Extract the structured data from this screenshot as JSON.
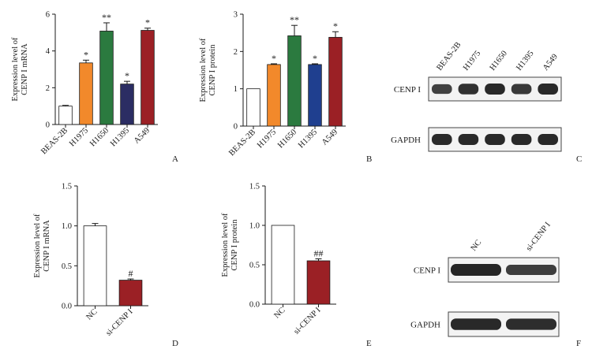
{
  "chart_data": [
    {
      "panel": "A",
      "type": "bar",
      "ylabel": [
        "Expression level of",
        "CENP I mRNA"
      ],
      "categories": [
        "BEAS-2B",
        "H1975",
        "H1650",
        "H1395",
        "A549"
      ],
      "values": [
        1.0,
        3.35,
        5.08,
        2.2,
        5.12
      ],
      "errors": [
        0.04,
        0.15,
        0.45,
        0.15,
        0.12
      ],
      "significance": [
        "",
        "*",
        "**",
        "*",
        "*"
      ],
      "colors": [
        "#ffffff",
        "#f2892b",
        "#2b7a3f",
        "#2b2d63",
        "#9b2025"
      ],
      "yticks": [
        "0",
        "2",
        "4",
        "6"
      ],
      "ylim": [
        0,
        6
      ]
    },
    {
      "panel": "B",
      "type": "bar",
      "ylabel": [
        "Expression level of",
        "CENP I protein"
      ],
      "categories": [
        "BEAS-2B",
        "H1975",
        "H1650",
        "H1395",
        "A549"
      ],
      "values": [
        1.0,
        1.65,
        2.42,
        1.65,
        2.38
      ],
      "errors": [
        0,
        0.02,
        0.28,
        0.02,
        0.15
      ],
      "significance": [
        "",
        "*",
        "**",
        "*",
        "*"
      ],
      "colors": [
        "#ffffff",
        "#f2892b",
        "#2b7a3f",
        "#1f3f8f",
        "#9b2025"
      ],
      "yticks": [
        "0",
        "1",
        "2",
        "3"
      ],
      "ylim": [
        0,
        3
      ]
    },
    {
      "panel": "D",
      "type": "bar",
      "ylabel": [
        "Expression level of",
        "CENP I mRNA"
      ],
      "categories": [
        "NC",
        "si-CENP I"
      ],
      "values": [
        1.0,
        0.32
      ],
      "errors": [
        0.03,
        0.015
      ],
      "significance": [
        "",
        "#"
      ],
      "colors": [
        "#ffffff",
        "#9b2025"
      ],
      "yticks": [
        "0.0",
        "0.5",
        "1.0",
        "1.5"
      ],
      "ylim": [
        0,
        1.5
      ]
    },
    {
      "panel": "E",
      "type": "bar",
      "ylabel": [
        "Expression level of",
        "CENP I protein"
      ],
      "categories": [
        "NC",
        "si-CENP I"
      ],
      "values": [
        1.0,
        0.55
      ],
      "errors": [
        0,
        0.025
      ],
      "significance": [
        "",
        "##"
      ],
      "colors": [
        "#ffffff",
        "#9b2025"
      ],
      "yticks": [
        "0.0",
        "0.5",
        "1.0",
        "1.5"
      ],
      "ylim": [
        0,
        1.5
      ]
    }
  ],
  "blots": [
    {
      "panel": "C",
      "lanes": [
        "BEAS-2B",
        "H1975",
        "H1650",
        "H1395",
        "A549"
      ],
      "rows": [
        {
          "label": "CENP I",
          "intensity": [
            0.65,
            0.85,
            0.95,
            0.75,
            0.95
          ]
        },
        {
          "label": "GAPDH",
          "intensity": [
            0.95,
            0.95,
            0.95,
            0.95,
            0.95
          ]
        }
      ]
    },
    {
      "panel": "F",
      "lanes": [
        "NC",
        "si-CENP I"
      ],
      "rows": [
        {
          "label": "CENP I",
          "intensity": [
            1.0,
            0.7
          ]
        },
        {
          "label": "GAPDH",
          "intensity": [
            0.95,
            0.9
          ]
        }
      ]
    }
  ]
}
